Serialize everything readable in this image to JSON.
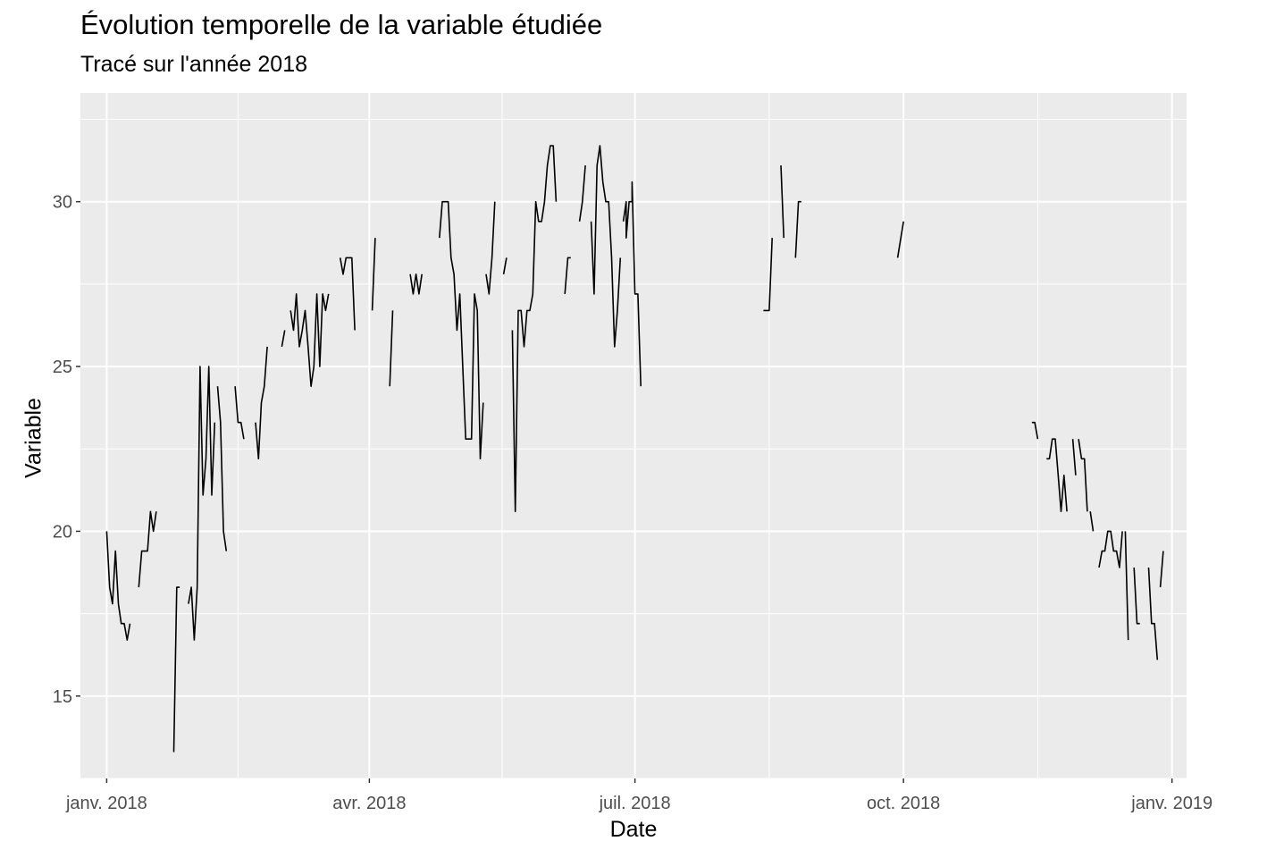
{
  "chart_data": {
    "type": "line",
    "title": "Évolution temporelle de la variable étudiée",
    "subtitle": "Tracé sur l'année 2018",
    "xlabel": "Date",
    "ylabel": "Variable",
    "x_axis": {
      "type": "date",
      "range": [
        "2017-12-23",
        "2019-01-06"
      ],
      "ticks": [
        {
          "date": "2018-01-01",
          "label": "janv. 2018"
        },
        {
          "date": "2018-04-01",
          "label": "avr. 2018"
        },
        {
          "date": "2018-07-01",
          "label": "juil. 2018"
        },
        {
          "date": "2018-10-01",
          "label": "oct. 2018"
        },
        {
          "date": "2019-01-01",
          "label": "janv. 2019"
        }
      ]
    },
    "y_axis": {
      "range": [
        12.5,
        33.3
      ],
      "ticks": [
        15,
        20,
        25,
        30
      ]
    },
    "grid": true,
    "line_color": "#000000",
    "series": [
      {
        "segments": [
          [
            [
              "2018-01-01",
              20.0
            ],
            [
              "2018-01-02",
              18.3
            ],
            [
              "2018-01-03",
              17.8
            ],
            [
              "2018-01-04",
              19.4
            ],
            [
              "2018-01-05",
              17.8
            ],
            [
              "2018-01-06",
              17.2
            ],
            [
              "2018-01-07",
              17.2
            ],
            [
              "2018-01-08",
              16.7
            ],
            [
              "2018-01-09",
              17.2
            ]
          ],
          [
            [
              "2018-01-12",
              18.3
            ],
            [
              "2018-01-13",
              19.4
            ],
            [
              "2018-01-14",
              19.4
            ],
            [
              "2018-01-15",
              19.4
            ],
            [
              "2018-01-16",
              20.6
            ],
            [
              "2018-01-17",
              20.0
            ],
            [
              "2018-01-18",
              20.6
            ]
          ],
          [
            [
              "2018-01-24",
              13.3
            ],
            [
              "2018-01-25",
              18.3
            ],
            [
              "2018-01-26",
              18.3
            ]
          ],
          [
            [
              "2018-01-29",
              17.8
            ],
            [
              "2018-01-30",
              18.3
            ],
            [
              "2018-01-31",
              16.7
            ],
            [
              "2018-02-01",
              18.3
            ],
            [
              "2018-02-02",
              25.0
            ],
            [
              "2018-02-03",
              21.1
            ],
            [
              "2018-02-04",
              22.2
            ],
            [
              "2018-02-05",
              25.0
            ],
            [
              "2018-02-06",
              21.1
            ],
            [
              "2018-02-07",
              23.3
            ]
          ],
          [
            [
              "2018-02-08",
              24.4
            ],
            [
              "2018-02-09",
              23.3
            ],
            [
              "2018-02-10",
              20.0
            ],
            [
              "2018-02-11",
              19.4
            ]
          ],
          [
            [
              "2018-02-14",
              24.4
            ],
            [
              "2018-02-15",
              23.3
            ],
            [
              "2018-02-16",
              23.3
            ],
            [
              "2018-02-17",
              22.8
            ]
          ],
          [
            [
              "2018-02-21",
              23.3
            ],
            [
              "2018-02-22",
              22.2
            ],
            [
              "2018-02-23",
              23.9
            ],
            [
              "2018-02-24",
              24.4
            ],
            [
              "2018-02-25",
              25.6
            ]
          ],
          [
            [
              "2018-03-02",
              25.6
            ],
            [
              "2018-03-03",
              26.1
            ]
          ],
          [
            [
              "2018-03-05",
              26.7
            ],
            [
              "2018-03-06",
              26.1
            ],
            [
              "2018-03-07",
              27.2
            ],
            [
              "2018-03-08",
              25.6
            ],
            [
              "2018-03-09",
              26.1
            ],
            [
              "2018-03-10",
              26.7
            ],
            [
              "2018-03-11",
              25.6
            ],
            [
              "2018-03-12",
              24.4
            ],
            [
              "2018-03-13",
              25.0
            ],
            [
              "2018-03-14",
              27.2
            ],
            [
              "2018-03-15",
              25.0
            ],
            [
              "2018-03-16",
              27.2
            ],
            [
              "2018-03-17",
              26.7
            ],
            [
              "2018-03-18",
              27.2
            ]
          ],
          [
            [
              "2018-03-22",
              28.3
            ],
            [
              "2018-03-23",
              27.8
            ],
            [
              "2018-03-24",
              28.3
            ],
            [
              "2018-03-25",
              28.3
            ],
            [
              "2018-03-26",
              28.3
            ],
            [
              "2018-03-27",
              26.1
            ]
          ],
          [
            [
              "2018-04-02",
              26.7
            ],
            [
              "2018-04-03",
              28.9
            ]
          ],
          [
            [
              "2018-04-08",
              24.4
            ],
            [
              "2018-04-09",
              26.7
            ]
          ],
          [
            [
              "2018-04-15",
              27.8
            ],
            [
              "2018-04-16",
              27.2
            ],
            [
              "2018-04-17",
              27.8
            ],
            [
              "2018-04-18",
              27.2
            ],
            [
              "2018-04-19",
              27.8
            ]
          ],
          [
            [
              "2018-04-25",
              28.9
            ],
            [
              "2018-04-26",
              30.0
            ],
            [
              "2018-04-27",
              30.0
            ],
            [
              "2018-04-28",
              30.0
            ],
            [
              "2018-04-29",
              28.3
            ],
            [
              "2018-04-30",
              27.8
            ],
            [
              "2018-05-01",
              26.1
            ],
            [
              "2018-05-02",
              27.2
            ],
            [
              "2018-05-03",
              25.0
            ],
            [
              "2018-05-04",
              22.8
            ],
            [
              "2018-05-05",
              22.8
            ],
            [
              "2018-05-06",
              22.8
            ],
            [
              "2018-05-07",
              27.2
            ],
            [
              "2018-05-08",
              26.7
            ],
            [
              "2018-05-09",
              22.2
            ],
            [
              "2018-05-10",
              23.9
            ]
          ],
          [
            [
              "2018-05-11",
              27.8
            ],
            [
              "2018-05-12",
              27.2
            ],
            [
              "2018-05-13",
              28.3
            ],
            [
              "2018-05-14",
              30.0
            ]
          ],
          [
            [
              "2018-05-17",
              27.8
            ],
            [
              "2018-05-18",
              28.3
            ]
          ],
          [
            [
              "2018-05-20",
              26.1
            ],
            [
              "2018-05-21",
              20.6
            ],
            [
              "2018-05-22",
              26.7
            ],
            [
              "2018-05-23",
              26.7
            ],
            [
              "2018-05-24",
              25.6
            ],
            [
              "2018-05-25",
              26.7
            ],
            [
              "2018-05-26",
              26.7
            ],
            [
              "2018-05-27",
              27.2
            ],
            [
              "2018-05-28",
              30.0
            ],
            [
              "2018-05-29",
              29.4
            ],
            [
              "2018-05-30",
              29.4
            ],
            [
              "2018-05-31",
              30.0
            ],
            [
              "2018-06-01",
              31.1
            ],
            [
              "2018-06-02",
              31.7
            ],
            [
              "2018-06-03",
              31.7
            ],
            [
              "2018-06-04",
              30.0
            ]
          ],
          [
            [
              "2018-06-07",
              27.2
            ],
            [
              "2018-06-08",
              28.3
            ],
            [
              "2018-06-09",
              28.3
            ]
          ],
          [
            [
              "2018-06-12",
              29.4
            ],
            [
              "2018-06-13",
              30.0
            ],
            [
              "2018-06-14",
              31.1
            ]
          ],
          [
            [
              "2018-06-16",
              29.4
            ],
            [
              "2018-06-17",
              27.2
            ],
            [
              "2018-06-18",
              31.1
            ],
            [
              "2018-06-19",
              31.7
            ],
            [
              "2018-06-20",
              30.6
            ],
            [
              "2018-06-21",
              30.0
            ],
            [
              "2018-06-22",
              30.0
            ],
            [
              "2018-06-23",
              28.3
            ],
            [
              "2018-06-24",
              25.6
            ],
            [
              "2018-06-25",
              26.7
            ],
            [
              "2018-06-26",
              28.3
            ]
          ],
          [
            [
              "2018-06-26",
              30.6
            ],
            [
              "2018-06-26",
              30.6
            ]
          ],
          [
            [
              "2018-06-27",
              29.4
            ],
            [
              "2018-06-28",
              30.0
            ],
            [
              "2018-06-28",
              28.9
            ],
            [
              "2018-06-29",
              30.0
            ],
            [
              "2018-06-30",
              30.0
            ],
            [
              "2018-06-30",
              30.6
            ],
            [
              "2018-07-01",
              27.2
            ],
            [
              "2018-07-02",
              27.2
            ],
            [
              "2018-07-03",
              24.4
            ]
          ],
          [
            [
              "2018-08-14",
              26.7
            ],
            [
              "2018-08-16",
              26.7
            ],
            [
              "2018-08-17",
              28.9
            ]
          ],
          [
            [
              "2018-08-20",
              31.1
            ],
            [
              "2018-08-21",
              28.9
            ]
          ],
          [
            [
              "2018-08-25",
              28.3
            ],
            [
              "2018-08-26",
              30.0
            ],
            [
              "2018-08-27",
              30.0
            ]
          ],
          [
            [
              "2018-09-29",
              28.3
            ],
            [
              "2018-10-01",
              29.4
            ]
          ],
          [
            [
              "2018-11-14",
              23.3
            ],
            [
              "2018-11-15",
              23.3
            ],
            [
              "2018-11-16",
              22.8
            ]
          ],
          [
            [
              "2018-11-19",
              22.2
            ],
            [
              "2018-11-20",
              22.2
            ],
            [
              "2018-11-21",
              22.8
            ],
            [
              "2018-11-22",
              22.8
            ],
            [
              "2018-11-23",
              21.7
            ],
            [
              "2018-11-24",
              20.6
            ],
            [
              "2018-11-25",
              21.7
            ],
            [
              "2018-11-26",
              20.6
            ]
          ],
          [
            [
              "2018-11-28",
              22.8
            ],
            [
              "2018-11-29",
              21.7
            ]
          ],
          [
            [
              "2018-11-30",
              22.8
            ],
            [
              "2018-12-01",
              22.2
            ],
            [
              "2018-12-02",
              22.2
            ],
            [
              "2018-12-03",
              20.6
            ]
          ],
          [
            [
              "2018-12-04",
              20.6
            ],
            [
              "2018-12-05",
              20.0
            ]
          ],
          [
            [
              "2018-12-07",
              18.9
            ],
            [
              "2018-12-08",
              19.4
            ],
            [
              "2018-12-09",
              19.4
            ],
            [
              "2018-12-10",
              20.0
            ],
            [
              "2018-12-11",
              20.0
            ],
            [
              "2018-12-12",
              19.4
            ],
            [
              "2018-12-13",
              19.4
            ],
            [
              "2018-12-14",
              18.9
            ],
            [
              "2018-12-15",
              20.0
            ]
          ],
          [
            [
              "2018-12-16",
              20.0
            ],
            [
              "2018-12-17",
              16.7
            ]
          ],
          [
            [
              "2018-12-19",
              18.9
            ],
            [
              "2018-12-20",
              17.2
            ],
            [
              "2018-12-21",
              17.2
            ]
          ],
          [
            [
              "2018-12-24",
              18.9
            ],
            [
              "2018-12-25",
              17.2
            ],
            [
              "2018-12-26",
              17.2
            ],
            [
              "2018-12-27",
              16.1
            ]
          ],
          [
            [
              "2018-12-28",
              18.3
            ],
            [
              "2018-12-29",
              19.4
            ]
          ]
        ]
      }
    ]
  }
}
